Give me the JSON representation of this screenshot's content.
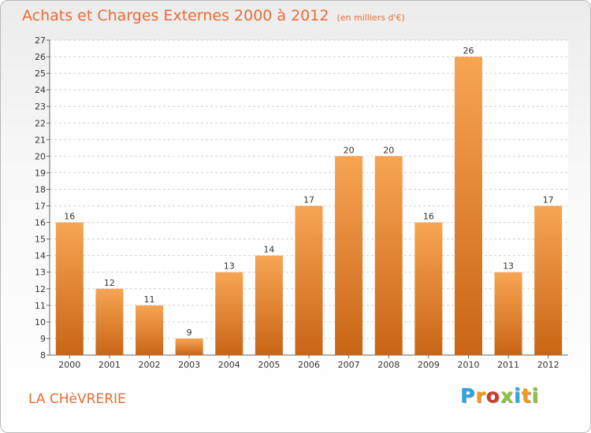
{
  "header": {
    "title": "Achats et Charges Externes 2000 à 2012",
    "subtitle": "(en milliers d'€)"
  },
  "footer": {
    "commune": "LA CHèVRERIE",
    "logo_letters": [
      {
        "char": "P",
        "color": "#2aa7df"
      },
      {
        "char": "r",
        "color": "#f39a1f"
      },
      {
        "char": "o",
        "color": "#d03a2f"
      },
      {
        "char": "x",
        "color": "#8bc53f"
      },
      {
        "char": "i",
        "color": "#2aa7df"
      },
      {
        "char": "t",
        "color": "#f39a1f"
      },
      {
        "char": "i",
        "color": "#8bc53f"
      }
    ]
  },
  "colors": {
    "bar_top": "#f7a553",
    "bar_bottom": "#c96515",
    "grid": "#d0d0d0",
    "title": "#ec6b35"
  },
  "chart_data": {
    "type": "bar",
    "title": "Achats et Charges Externes 2000 à 2012",
    "subtitle": "(en milliers d'€)",
    "categories": [
      "2000",
      "2001",
      "2002",
      "2003",
      "2004",
      "2005",
      "2006",
      "2007",
      "2008",
      "2009",
      "2010",
      "2011",
      "2012"
    ],
    "values": [
      16,
      12,
      11,
      9,
      13,
      14,
      17,
      20,
      20,
      16,
      26,
      13,
      17
    ],
    "ylim": [
      8,
      27
    ],
    "yticks": [
      8,
      9,
      10,
      11,
      12,
      13,
      14,
      15,
      16,
      17,
      18,
      19,
      20,
      21,
      22,
      23,
      24,
      25,
      26,
      27
    ],
    "grid": true,
    "data_labels": true,
    "xlabel": "",
    "ylabel": ""
  }
}
